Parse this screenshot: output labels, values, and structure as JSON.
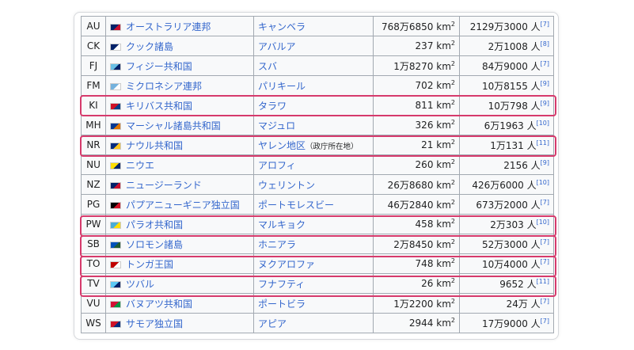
{
  "table": {
    "rows": [
      {
        "code": "AU",
        "flag_colors": [
          "#012169",
          "#c8102e"
        ],
        "name": "オーストラリア連邦",
        "capital": "キャンベラ",
        "capital_note": "",
        "area": "768万6850 km",
        "area_sup": "2",
        "population": "2129万3000 人",
        "ref": "[7]",
        "highlighted": false
      },
      {
        "code": "CK",
        "flag_colors": [
          "#012169",
          "#ffffff"
        ],
        "name": "クック諸島",
        "capital": "アバルア",
        "capital_note": "",
        "area": "237 km",
        "area_sup": "2",
        "population": "2万1008 人",
        "ref": "[8]",
        "highlighted": false
      },
      {
        "code": "FJ",
        "flag_colors": [
          "#68bfe5",
          "#012169"
        ],
        "name": "フィジー共和国",
        "capital": "スバ",
        "capital_note": "",
        "area": "1万8270 km",
        "area_sup": "2",
        "population": "84万9000 人",
        "ref": "[7]",
        "highlighted": false
      },
      {
        "code": "FM",
        "flag_colors": [
          "#75b2dd",
          "#ffffff"
        ],
        "name": "ミクロネシア連邦",
        "capital": "パリキール",
        "capital_note": "",
        "area": "702 km",
        "area_sup": "2",
        "population": "10万8155 人",
        "ref": "[9]",
        "highlighted": false
      },
      {
        "code": "KI",
        "flag_colors": [
          "#ce1126",
          "#003f87"
        ],
        "name": "キリバス共和国",
        "capital": "タラワ",
        "capital_note": "",
        "area": "811 km",
        "area_sup": "2",
        "population": "10万798 人",
        "ref": "[9]",
        "highlighted": true
      },
      {
        "code": "MH",
        "flag_colors": [
          "#003893",
          "#dd7500"
        ],
        "name": "マーシャル諸島共和国",
        "capital": "マジュロ",
        "capital_note": "",
        "area": "326 km",
        "area_sup": "2",
        "population": "6万1963 人",
        "ref": "[10]",
        "highlighted": false
      },
      {
        "code": "NR",
        "flag_colors": [
          "#002b7f",
          "#ffc61e"
        ],
        "name": "ナウル共和国",
        "capital": "ヤレン地区",
        "capital_note": "（政庁所在地）",
        "area": "21 km",
        "area_sup": "2",
        "population": "1万131 人",
        "ref": "[11]",
        "highlighted": true
      },
      {
        "code": "NU",
        "flag_colors": [
          "#fedd00",
          "#012169"
        ],
        "name": "ニウエ",
        "capital": "アロフィ",
        "capital_note": "",
        "area": "260 km",
        "area_sup": "2",
        "population": "2156 人",
        "ref": "[9]",
        "highlighted": false
      },
      {
        "code": "NZ",
        "flag_colors": [
          "#012169",
          "#c8102e"
        ],
        "name": "ニュージーランド",
        "capital": "ウェリントン",
        "capital_note": "",
        "area": "26万8680 km",
        "area_sup": "2",
        "population": "426万6000 人",
        "ref": "[10]",
        "highlighted": false
      },
      {
        "code": "PG",
        "flag_colors": [
          "#000000",
          "#ce1126"
        ],
        "name": "パプアニューギニア独立国",
        "capital": "ポートモレスビー",
        "capital_note": "",
        "area": "46万2840 km",
        "area_sup": "2",
        "population": "673万2000 人",
        "ref": "[7]",
        "highlighted": false
      },
      {
        "code": "PW",
        "flag_colors": [
          "#4aadd6",
          "#ffde00"
        ],
        "name": "パラオ共和国",
        "capital": "マルキョク",
        "capital_note": "",
        "area": "458 km",
        "area_sup": "2",
        "population": "2万303 人",
        "ref": "[10]",
        "highlighted": true
      },
      {
        "code": "SB",
        "flag_colors": [
          "#0051ba",
          "#215b33"
        ],
        "name": "ソロモン諸島",
        "capital": "ホニアラ",
        "capital_note": "",
        "area": "2万8450 km",
        "area_sup": "2",
        "population": "52万3000 人",
        "ref": "[7]",
        "highlighted": true
      },
      {
        "code": "TO",
        "flag_colors": [
          "#c10000",
          "#ffffff"
        ],
        "name": "トンガ王国",
        "capital": "ヌクアロファ",
        "capital_note": "",
        "area": "748 km",
        "area_sup": "2",
        "population": "10万4000 人",
        "ref": "[7]",
        "highlighted": true
      },
      {
        "code": "TV",
        "flag_colors": [
          "#5bc8f5",
          "#012169"
        ],
        "name": "ツバル",
        "capital": "フナフティ",
        "capital_note": "",
        "area": "26 km",
        "area_sup": "2",
        "population": "9652 人",
        "ref": "[11]",
        "highlighted": true
      },
      {
        "code": "VU",
        "flag_colors": [
          "#d21034",
          "#009543"
        ],
        "name": "バヌアツ共和国",
        "capital": "ポートビラ",
        "capital_note": "",
        "area": "1万2200 km",
        "area_sup": "2",
        "population": "24万 人",
        "ref": "[7]",
        "highlighted": false
      },
      {
        "code": "WS",
        "flag_colors": [
          "#ce1126",
          "#002b7f"
        ],
        "name": "サモア独立国",
        "capital": "アピア",
        "capital_note": "",
        "area": "2944 km",
        "area_sup": "2",
        "population": "17万9000 人",
        "ref": "[7]",
        "highlighted": false
      }
    ]
  },
  "highlight_color": "#d63a6c"
}
